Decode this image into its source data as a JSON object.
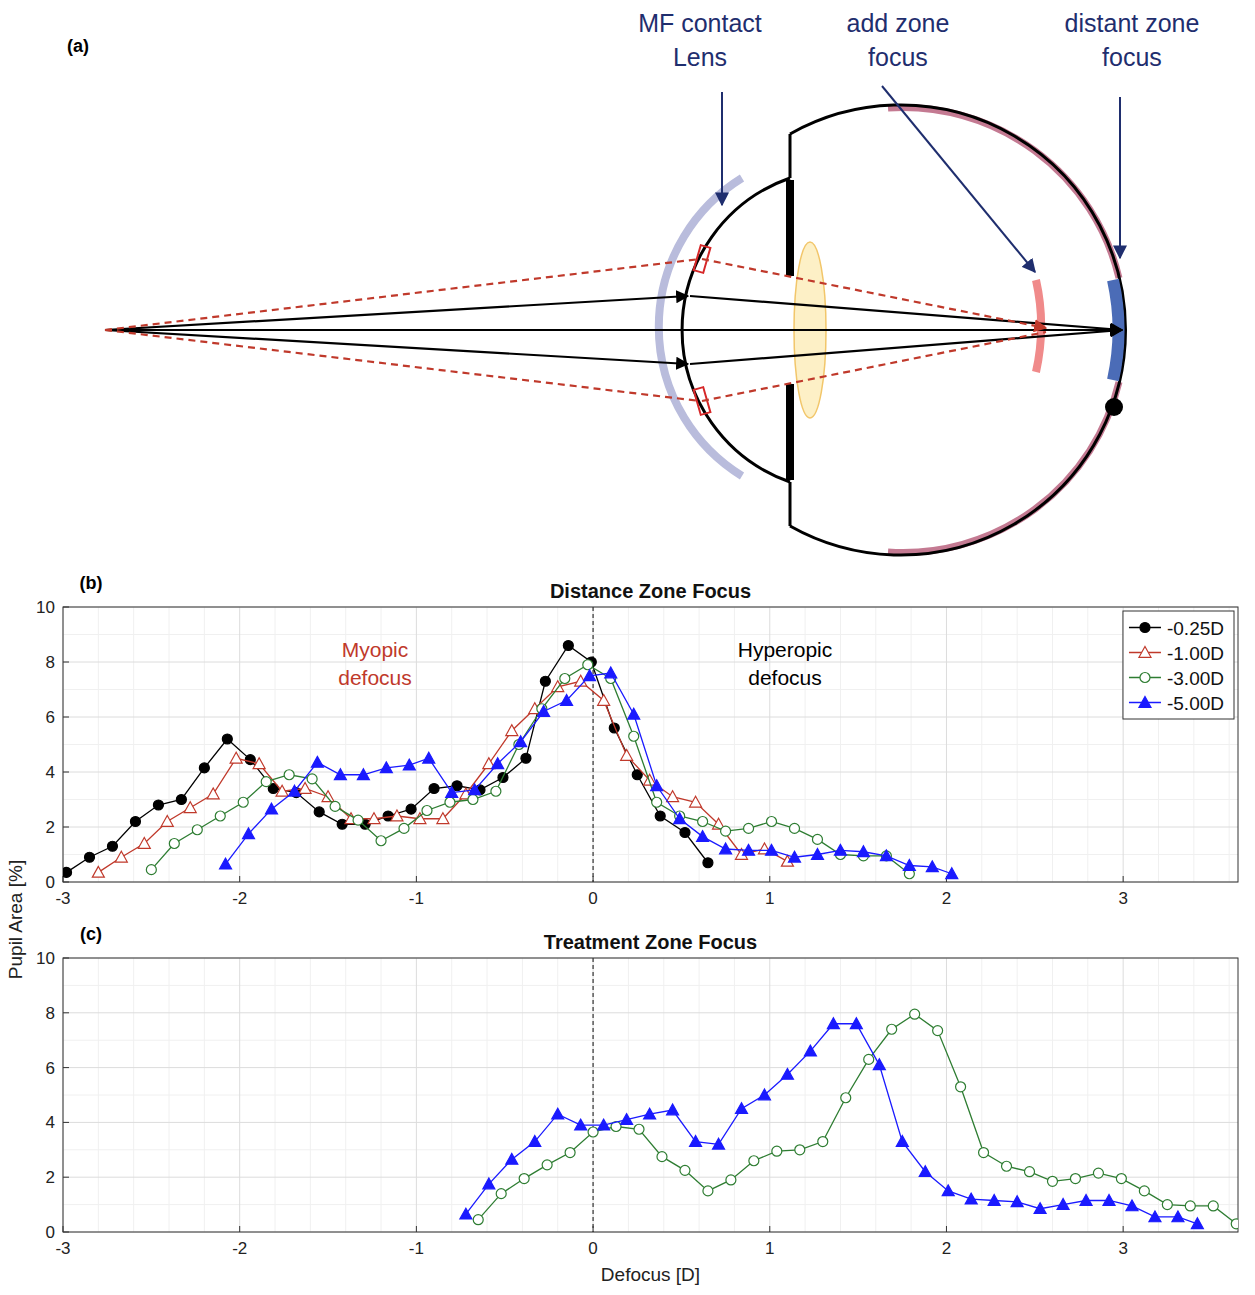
{
  "diagram": {
    "panel": "(a)",
    "labels": [
      {
        "lines": [
          "MF contact",
          "Lens"
        ]
      },
      {
        "lines": [
          "add zone",
          "focus"
        ]
      },
      {
        "lines": [
          "distant zone",
          "focus"
        ]
      }
    ]
  },
  "chart_data": [
    {
      "type": "line",
      "panel": "(b)",
      "title": "Distance Zone Focus",
      "ylabel": "Pupil Area [%]",
      "xlim": [
        -3,
        3.65
      ],
      "xticks": [
        -3,
        -2,
        -1,
        0,
        1,
        2,
        3
      ],
      "ylim": [
        0,
        10
      ],
      "yticks": [
        0,
        2,
        4,
        6,
        8,
        10
      ],
      "grid": true,
      "legend": "northeast",
      "vline": 0,
      "annotations": [
        {
          "text": "Myopic defocus",
          "color": "#c0392b"
        },
        {
          "text": "Hyperopic defocus",
          "color": "#000000"
        }
      ],
      "series": [
        {
          "name": "-0.25D",
          "color": "#000000",
          "marker": "circle",
          "x": [
            -2.98,
            -2.85,
            -2.72,
            -2.59,
            -2.46,
            -2.33,
            -2.2,
            -2.07,
            -1.94,
            -1.81,
            -1.68,
            -1.55,
            -1.42,
            -1.29,
            -1.16,
            -1.03,
            -0.9,
            -0.77,
            -0.64,
            -0.51,
            -0.38,
            -0.27,
            -0.14,
            -0.01,
            0.12,
            0.25,
            0.38,
            0.52,
            0.65
          ],
          "values": [
            0.35,
            0.9,
            1.3,
            2.2,
            2.8,
            3.0,
            4.15,
            5.2,
            4.45,
            3.4,
            3.25,
            2.55,
            2.1,
            2.1,
            2.4,
            2.65,
            3.4,
            3.5,
            3.35,
            3.8,
            4.5,
            7.3,
            8.6,
            8.0,
            5.6,
            3.9,
            2.4,
            1.8,
            0.7
          ]
        },
        {
          "name": "-1.00D",
          "color": "#c0392b",
          "marker": "triangle-open",
          "x": [
            -2.8,
            -2.67,
            -2.54,
            -2.41,
            -2.28,
            -2.15,
            -2.02,
            -1.89,
            -1.76,
            -1.63,
            -1.5,
            -1.37,
            -1.24,
            -1.11,
            -0.98,
            -0.85,
            -0.72,
            -0.59,
            -0.46,
            -0.33,
            -0.2,
            -0.07,
            0.06,
            0.19,
            0.32,
            0.45,
            0.58,
            0.71,
            0.84,
            0.97,
            1.1
          ],
          "values": [
            0.35,
            0.9,
            1.4,
            2.2,
            2.7,
            3.2,
            4.5,
            4.3,
            3.3,
            3.4,
            3.1,
            2.3,
            2.3,
            2.4,
            2.3,
            2.3,
            3.2,
            4.3,
            5.5,
            6.3,
            7.1,
            7.3,
            6.6,
            4.6,
            3.7,
            3.1,
            2.9,
            2.1,
            1.0,
            1.2,
            0.75
          ]
        },
        {
          "name": "-3.00D",
          "color": "#2e7d32",
          "marker": "circle-open",
          "x": [
            -2.5,
            -2.37,
            -2.24,
            -2.11,
            -1.98,
            -1.85,
            -1.72,
            -1.59,
            -1.46,
            -1.33,
            -1.2,
            -1.07,
            -0.94,
            -0.81,
            -0.68,
            -0.55,
            -0.42,
            -0.29,
            -0.16,
            -0.03,
            0.1,
            0.23,
            0.36,
            0.49,
            0.62,
            0.75,
            0.88,
            1.01,
            1.14,
            1.27,
            1.4,
            1.53,
            1.66,
            1.79
          ],
          "values": [
            0.45,
            1.4,
            1.9,
            2.4,
            2.9,
            3.65,
            3.9,
            3.75,
            2.75,
            2.25,
            1.5,
            1.95,
            2.6,
            2.9,
            3.0,
            3.3,
            5.0,
            6.3,
            7.4,
            7.9,
            7.4,
            5.3,
            2.9,
            2.4,
            2.2,
            1.85,
            1.95,
            2.2,
            1.95,
            1.55,
            1.0,
            0.95,
            0.95,
            0.3
          ]
        },
        {
          "name": "-5.00D",
          "color": "#1a1aff",
          "marker": "triangle",
          "x": [
            -2.08,
            -1.95,
            -1.82,
            -1.69,
            -1.56,
            -1.43,
            -1.3,
            -1.17,
            -1.04,
            -0.93,
            -0.8,
            -0.67,
            -0.54,
            -0.41,
            -0.28,
            -0.15,
            -0.02,
            0.1,
            0.23,
            0.36,
            0.49,
            0.62,
            0.75,
            0.88,
            1.01,
            1.14,
            1.27,
            1.4,
            1.53,
            1.66,
            1.79,
            1.92,
            2.03
          ],
          "values": [
            0.65,
            1.75,
            2.65,
            3.3,
            4.35,
            3.9,
            3.9,
            4.15,
            4.25,
            4.5,
            3.25,
            3.35,
            4.3,
            5.1,
            6.2,
            6.6,
            7.5,
            7.6,
            6.1,
            3.5,
            2.3,
            1.65,
            1.2,
            1.15,
            1.15,
            0.9,
            1.0,
            1.15,
            1.1,
            0.95,
            0.6,
            0.55,
            0.3
          ]
        }
      ]
    },
    {
      "type": "line",
      "panel": "(c)",
      "title": "Treatment Zone Focus",
      "xlabel": "Defocus [D]",
      "xlim": [
        -3,
        3.65
      ],
      "xticks": [
        -3,
        -2,
        -1,
        0,
        1,
        2,
        3
      ],
      "ylim": [
        0,
        10
      ],
      "yticks": [
        0,
        2,
        4,
        6,
        8,
        10
      ],
      "grid": true,
      "vline": 0,
      "series": [
        {
          "color": "#2e7d32",
          "marker": "circle-open",
          "x": [
            -0.65,
            -0.52,
            -0.39,
            -0.26,
            -0.13,
            0.0,
            0.13,
            0.26,
            0.39,
            0.52,
            0.65,
            0.78,
            0.91,
            1.04,
            1.17,
            1.3,
            1.43,
            1.56,
            1.69,
            1.82,
            1.95,
            2.08,
            2.21,
            2.34,
            2.47,
            2.6,
            2.73,
            2.86,
            2.99,
            3.12,
            3.25,
            3.38,
            3.51,
            3.64
          ],
          "values": [
            0.45,
            1.4,
            1.95,
            2.45,
            2.9,
            3.65,
            3.85,
            3.75,
            2.75,
            2.25,
            1.5,
            1.9,
            2.6,
            2.95,
            3.0,
            3.3,
            4.9,
            6.3,
            7.4,
            7.95,
            7.35,
            5.3,
            2.9,
            2.4,
            2.2,
            1.85,
            1.95,
            2.15,
            1.95,
            1.5,
            1.0,
            0.95,
            0.95,
            0.3
          ]
        },
        {
          "color": "#1a1aff",
          "marker": "triangle",
          "x": [
            -0.72,
            -0.59,
            -0.46,
            -0.33,
            -0.2,
            -0.07,
            0.06,
            0.19,
            0.32,
            0.45,
            0.58,
            0.71,
            0.84,
            0.97,
            1.1,
            1.23,
            1.36,
            1.49,
            1.62,
            1.75,
            1.88,
            2.01,
            2.14,
            2.27,
            2.4,
            2.53,
            2.66,
            2.79,
            2.92,
            3.05,
            3.18,
            3.31,
            3.42
          ],
          "values": [
            0.65,
            1.75,
            2.65,
            3.3,
            4.3,
            3.9,
            3.9,
            4.1,
            4.3,
            4.45,
            3.3,
            3.2,
            4.5,
            5.0,
            5.75,
            6.6,
            7.6,
            7.6,
            6.1,
            3.3,
            2.2,
            1.5,
            1.2,
            1.15,
            1.1,
            0.85,
            1.0,
            1.15,
            1.15,
            0.95,
            0.55,
            0.55,
            0.3
          ]
        }
      ]
    }
  ]
}
